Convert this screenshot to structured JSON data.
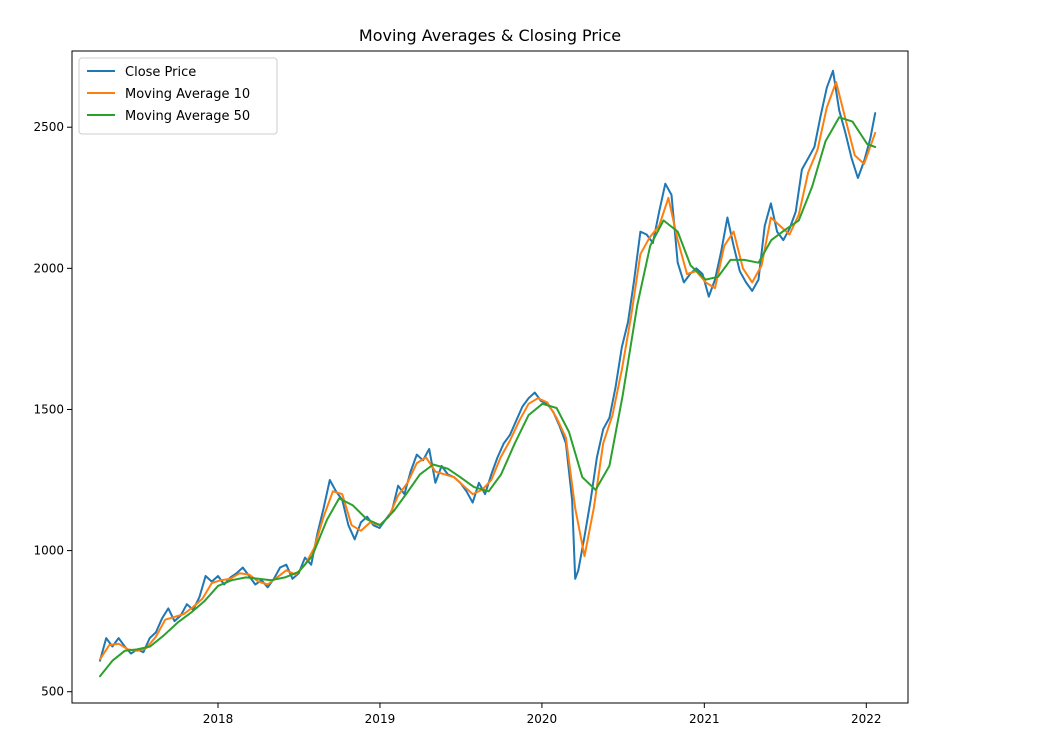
{
  "chart_data": {
    "type": "line",
    "title": "Moving Averages & Closing Price",
    "xlabel": "",
    "ylabel": "",
    "x_ticks": [
      "2018",
      "2019",
      "2020",
      "2021",
      "2022"
    ],
    "y_ticks": [
      500,
      1000,
      1500,
      2000,
      2500
    ],
    "xlim": [
      "2017-02-06",
      "2022-04-05"
    ],
    "ylim": [
      460,
      2770
    ],
    "grid": false,
    "legend_position": "top-left",
    "series": [
      {
        "name": "Close Price",
        "color": "#1f77b4",
        "points": [
          [
            "2017-04-10",
            610
          ],
          [
            "2017-04-24",
            690
          ],
          [
            "2017-05-08",
            660
          ],
          [
            "2017-05-22",
            690
          ],
          [
            "2017-06-05",
            660
          ],
          [
            "2017-06-19",
            635
          ],
          [
            "2017-07-03",
            650
          ],
          [
            "2017-07-17",
            640
          ],
          [
            "2017-07-31",
            690
          ],
          [
            "2017-08-14",
            710
          ],
          [
            "2017-08-28",
            760
          ],
          [
            "2017-09-11",
            795
          ],
          [
            "2017-09-25",
            750
          ],
          [
            "2017-10-09",
            770
          ],
          [
            "2017-10-23",
            810
          ],
          [
            "2017-11-06",
            790
          ],
          [
            "2017-11-20",
            835
          ],
          [
            "2017-12-04",
            910
          ],
          [
            "2017-12-18",
            890
          ],
          [
            "2018-01-01",
            910
          ],
          [
            "2018-01-15",
            880
          ],
          [
            "2018-01-29",
            905
          ],
          [
            "2018-02-12",
            920
          ],
          [
            "2018-02-26",
            940
          ],
          [
            "2018-03-12",
            910
          ],
          [
            "2018-03-26",
            880
          ],
          [
            "2018-04-09",
            895
          ],
          [
            "2018-04-23",
            870
          ],
          [
            "2018-05-07",
            900
          ],
          [
            "2018-05-21",
            940
          ],
          [
            "2018-06-04",
            950
          ],
          [
            "2018-06-18",
            900
          ],
          [
            "2018-07-02",
            920
          ],
          [
            "2018-07-16",
            975
          ],
          [
            "2018-07-30",
            950
          ],
          [
            "2018-08-13",
            1060
          ],
          [
            "2018-08-27",
            1150
          ],
          [
            "2018-09-10",
            1250
          ],
          [
            "2018-09-24",
            1210
          ],
          [
            "2018-10-08",
            1180
          ],
          [
            "2018-10-22",
            1090
          ],
          [
            "2018-11-05",
            1040
          ],
          [
            "2018-11-19",
            1100
          ],
          [
            "2018-12-03",
            1120
          ],
          [
            "2018-12-17",
            1090
          ],
          [
            "2018-12-31",
            1080
          ],
          [
            "2019-01-14",
            1110
          ],
          [
            "2019-01-28",
            1140
          ],
          [
            "2019-02-11",
            1230
          ],
          [
            "2019-02-25",
            1200
          ],
          [
            "2019-03-11",
            1280
          ],
          [
            "2019-03-25",
            1340
          ],
          [
            "2019-04-08",
            1320
          ],
          [
            "2019-04-22",
            1360
          ],
          [
            "2019-05-06",
            1240
          ],
          [
            "2019-05-20",
            1300
          ],
          [
            "2019-06-03",
            1270
          ],
          [
            "2019-06-17",
            1260
          ],
          [
            "2019-07-01",
            1240
          ],
          [
            "2019-07-15",
            1210
          ],
          [
            "2019-07-29",
            1170
          ],
          [
            "2019-08-12",
            1240
          ],
          [
            "2019-08-26",
            1200
          ],
          [
            "2019-09-09",
            1270
          ],
          [
            "2019-09-23",
            1330
          ],
          [
            "2019-10-07",
            1380
          ],
          [
            "2019-10-21",
            1410
          ],
          [
            "2019-11-04",
            1460
          ],
          [
            "2019-11-18",
            1510
          ],
          [
            "2019-12-02",
            1540
          ],
          [
            "2019-12-16",
            1560
          ],
          [
            "2019-12-30",
            1530
          ],
          [
            "2020-01-13",
            1520
          ],
          [
            "2020-01-27",
            1490
          ],
          [
            "2020-02-10",
            1440
          ],
          [
            "2020-02-24",
            1380
          ],
          [
            "2020-03-09",
            1180
          ],
          [
            "2020-03-16",
            900
          ],
          [
            "2020-03-23",
            930
          ],
          [
            "2020-04-06",
            1050
          ],
          [
            "2020-04-20",
            1180
          ],
          [
            "2020-05-04",
            1330
          ],
          [
            "2020-05-18",
            1430
          ],
          [
            "2020-06-01",
            1470
          ],
          [
            "2020-06-15",
            1580
          ],
          [
            "2020-06-29",
            1720
          ],
          [
            "2020-07-13",
            1810
          ],
          [
            "2020-07-27",
            1960
          ],
          [
            "2020-08-10",
            2130
          ],
          [
            "2020-08-24",
            2120
          ],
          [
            "2020-09-07",
            2090
          ],
          [
            "2020-09-21",
            2200
          ],
          [
            "2020-10-05",
            2300
          ],
          [
            "2020-10-19",
            2260
          ],
          [
            "2020-11-02",
            2020
          ],
          [
            "2020-11-16",
            1950
          ],
          [
            "2020-11-30",
            1980
          ],
          [
            "2020-12-14",
            2000
          ],
          [
            "2020-12-28",
            1980
          ],
          [
            "2021-01-11",
            1900
          ],
          [
            "2021-01-25",
            1960
          ],
          [
            "2021-02-08",
            2060
          ],
          [
            "2021-02-22",
            2180
          ],
          [
            "2021-03-08",
            2080
          ],
          [
            "2021-03-22",
            1990
          ],
          [
            "2021-04-05",
            1950
          ],
          [
            "2021-04-19",
            1920
          ],
          [
            "2021-05-03",
            1960
          ],
          [
            "2021-05-17",
            2150
          ],
          [
            "2021-05-31",
            2230
          ],
          [
            "2021-06-14",
            2130
          ],
          [
            "2021-06-28",
            2100
          ],
          [
            "2021-07-12",
            2140
          ],
          [
            "2021-07-26",
            2200
          ],
          [
            "2021-08-09",
            2350
          ],
          [
            "2021-08-23",
            2390
          ],
          [
            "2021-09-06",
            2430
          ],
          [
            "2021-09-20",
            2540
          ],
          [
            "2021-10-04",
            2640
          ],
          [
            "2021-10-18",
            2700
          ],
          [
            "2021-11-01",
            2560
          ],
          [
            "2021-11-15",
            2480
          ],
          [
            "2021-11-29",
            2390
          ],
          [
            "2021-12-13",
            2320
          ],
          [
            "2021-12-27",
            2380
          ],
          [
            "2022-01-10",
            2460
          ],
          [
            "2022-01-21",
            2550
          ]
        ]
      },
      {
        "name": "Moving Average 10",
        "color": "#ff7f0e",
        "points": [
          [
            "2017-04-10",
            615
          ],
          [
            "2017-05-01",
            665
          ],
          [
            "2017-05-22",
            670
          ],
          [
            "2017-06-12",
            650
          ],
          [
            "2017-07-03",
            645
          ],
          [
            "2017-07-24",
            655
          ],
          [
            "2017-08-14",
            695
          ],
          [
            "2017-09-04",
            755
          ],
          [
            "2017-09-25",
            765
          ],
          [
            "2017-10-16",
            775
          ],
          [
            "2017-11-06",
            800
          ],
          [
            "2017-11-27",
            830
          ],
          [
            "2017-12-18",
            885
          ],
          [
            "2018-01-08",
            895
          ],
          [
            "2018-01-29",
            900
          ],
          [
            "2018-02-19",
            920
          ],
          [
            "2018-03-12",
            915
          ],
          [
            "2018-04-02",
            890
          ],
          [
            "2018-04-23",
            880
          ],
          [
            "2018-05-14",
            905
          ],
          [
            "2018-06-04",
            930
          ],
          [
            "2018-06-25",
            915
          ],
          [
            "2018-07-16",
            950
          ],
          [
            "2018-08-06",
            1010
          ],
          [
            "2018-08-27",
            1120
          ],
          [
            "2018-09-17",
            1210
          ],
          [
            "2018-10-08",
            1200
          ],
          [
            "2018-10-29",
            1090
          ],
          [
            "2018-11-19",
            1070
          ],
          [
            "2018-12-10",
            1100
          ],
          [
            "2018-12-31",
            1090
          ],
          [
            "2019-01-21",
            1120
          ],
          [
            "2019-02-11",
            1195
          ],
          [
            "2019-03-04",
            1240
          ],
          [
            "2019-03-25",
            1310
          ],
          [
            "2019-04-15",
            1330
          ],
          [
            "2019-05-06",
            1280
          ],
          [
            "2019-05-27",
            1270
          ],
          [
            "2019-06-17",
            1260
          ],
          [
            "2019-07-08",
            1230
          ],
          [
            "2019-07-29",
            1200
          ],
          [
            "2019-08-19",
            1215
          ],
          [
            "2019-09-09",
            1250
          ],
          [
            "2019-09-30",
            1330
          ],
          [
            "2019-10-21",
            1390
          ],
          [
            "2019-11-11",
            1460
          ],
          [
            "2019-12-02",
            1520
          ],
          [
            "2019-12-23",
            1540
          ],
          [
            "2020-01-13",
            1525
          ],
          [
            "2020-02-03",
            1470
          ],
          [
            "2020-02-24",
            1400
          ],
          [
            "2020-03-16",
            1150
          ],
          [
            "2020-04-06",
            980
          ],
          [
            "2020-04-27",
            1150
          ],
          [
            "2020-05-18",
            1380
          ],
          [
            "2020-06-08",
            1480
          ],
          [
            "2020-06-29",
            1640
          ],
          [
            "2020-07-20",
            1830
          ],
          [
            "2020-08-10",
            2050
          ],
          [
            "2020-08-31",
            2110
          ],
          [
            "2020-09-21",
            2150
          ],
          [
            "2020-10-12",
            2250
          ],
          [
            "2020-11-02",
            2100
          ],
          [
            "2020-11-23",
            1980
          ],
          [
            "2020-12-14",
            1990
          ],
          [
            "2021-01-04",
            1950
          ],
          [
            "2021-01-25",
            1930
          ],
          [
            "2021-02-15",
            2080
          ],
          [
            "2021-03-08",
            2130
          ],
          [
            "2021-03-29",
            2000
          ],
          [
            "2021-04-19",
            1950
          ],
          [
            "2021-05-10",
            2010
          ],
          [
            "2021-05-31",
            2180
          ],
          [
            "2021-06-21",
            2150
          ],
          [
            "2021-07-12",
            2120
          ],
          [
            "2021-08-02",
            2190
          ],
          [
            "2021-08-23",
            2340
          ],
          [
            "2021-09-13",
            2420
          ],
          [
            "2021-10-04",
            2570
          ],
          [
            "2021-10-25",
            2660
          ],
          [
            "2021-11-15",
            2530
          ],
          [
            "2021-12-06",
            2400
          ],
          [
            "2021-12-27",
            2370
          ],
          [
            "2022-01-21",
            2480
          ]
        ]
      },
      {
        "name": "Moving Average 50",
        "color": "#2ca02c",
        "points": [
          [
            "2017-04-10",
            555
          ],
          [
            "2017-05-08",
            610
          ],
          [
            "2017-06-05",
            645
          ],
          [
            "2017-07-03",
            650
          ],
          [
            "2017-08-01",
            660
          ],
          [
            "2017-09-01",
            700
          ],
          [
            "2017-10-02",
            745
          ],
          [
            "2017-11-01",
            780
          ],
          [
            "2017-12-01",
            820
          ],
          [
            "2018-01-01",
            875
          ],
          [
            "2018-02-01",
            895
          ],
          [
            "2018-03-05",
            905
          ],
          [
            "2018-04-02",
            900
          ],
          [
            "2018-05-01",
            895
          ],
          [
            "2018-06-01",
            905
          ],
          [
            "2018-07-02",
            925
          ],
          [
            "2018-08-01",
            980
          ],
          [
            "2018-09-04",
            1110
          ],
          [
            "2018-10-01",
            1185
          ],
          [
            "2018-11-01",
            1160
          ],
          [
            "2018-12-03",
            1110
          ],
          [
            "2019-01-02",
            1090
          ],
          [
            "2019-02-01",
            1140
          ],
          [
            "2019-03-01",
            1200
          ],
          [
            "2019-04-01",
            1270
          ],
          [
            "2019-05-01",
            1305
          ],
          [
            "2019-06-03",
            1290
          ],
          [
            "2019-07-01",
            1260
          ],
          [
            "2019-08-01",
            1225
          ],
          [
            "2019-09-03",
            1210
          ],
          [
            "2019-10-01",
            1270
          ],
          [
            "2019-11-01",
            1380
          ],
          [
            "2019-12-02",
            1480
          ],
          [
            "2020-01-02",
            1520
          ],
          [
            "2020-02-03",
            1505
          ],
          [
            "2020-03-02",
            1420
          ],
          [
            "2020-04-01",
            1260
          ],
          [
            "2020-05-01",
            1215
          ],
          [
            "2020-06-01",
            1300
          ],
          [
            "2020-07-01",
            1550
          ],
          [
            "2020-08-03",
            1870
          ],
          [
            "2020-09-01",
            2080
          ],
          [
            "2020-10-01",
            2170
          ],
          [
            "2020-11-02",
            2130
          ],
          [
            "2020-12-01",
            2010
          ],
          [
            "2021-01-04",
            1960
          ],
          [
            "2021-02-01",
            1970
          ],
          [
            "2021-03-01",
            2030
          ],
          [
            "2021-04-01",
            2030
          ],
          [
            "2021-05-03",
            2020
          ],
          [
            "2021-06-01",
            2100
          ],
          [
            "2021-07-01",
            2135
          ],
          [
            "2021-08-02",
            2170
          ],
          [
            "2021-09-01",
            2290
          ],
          [
            "2021-10-01",
            2450
          ],
          [
            "2021-11-01",
            2535
          ],
          [
            "2021-12-01",
            2520
          ],
          [
            "2022-01-03",
            2440
          ],
          [
            "2022-01-21",
            2430
          ]
        ]
      }
    ]
  }
}
